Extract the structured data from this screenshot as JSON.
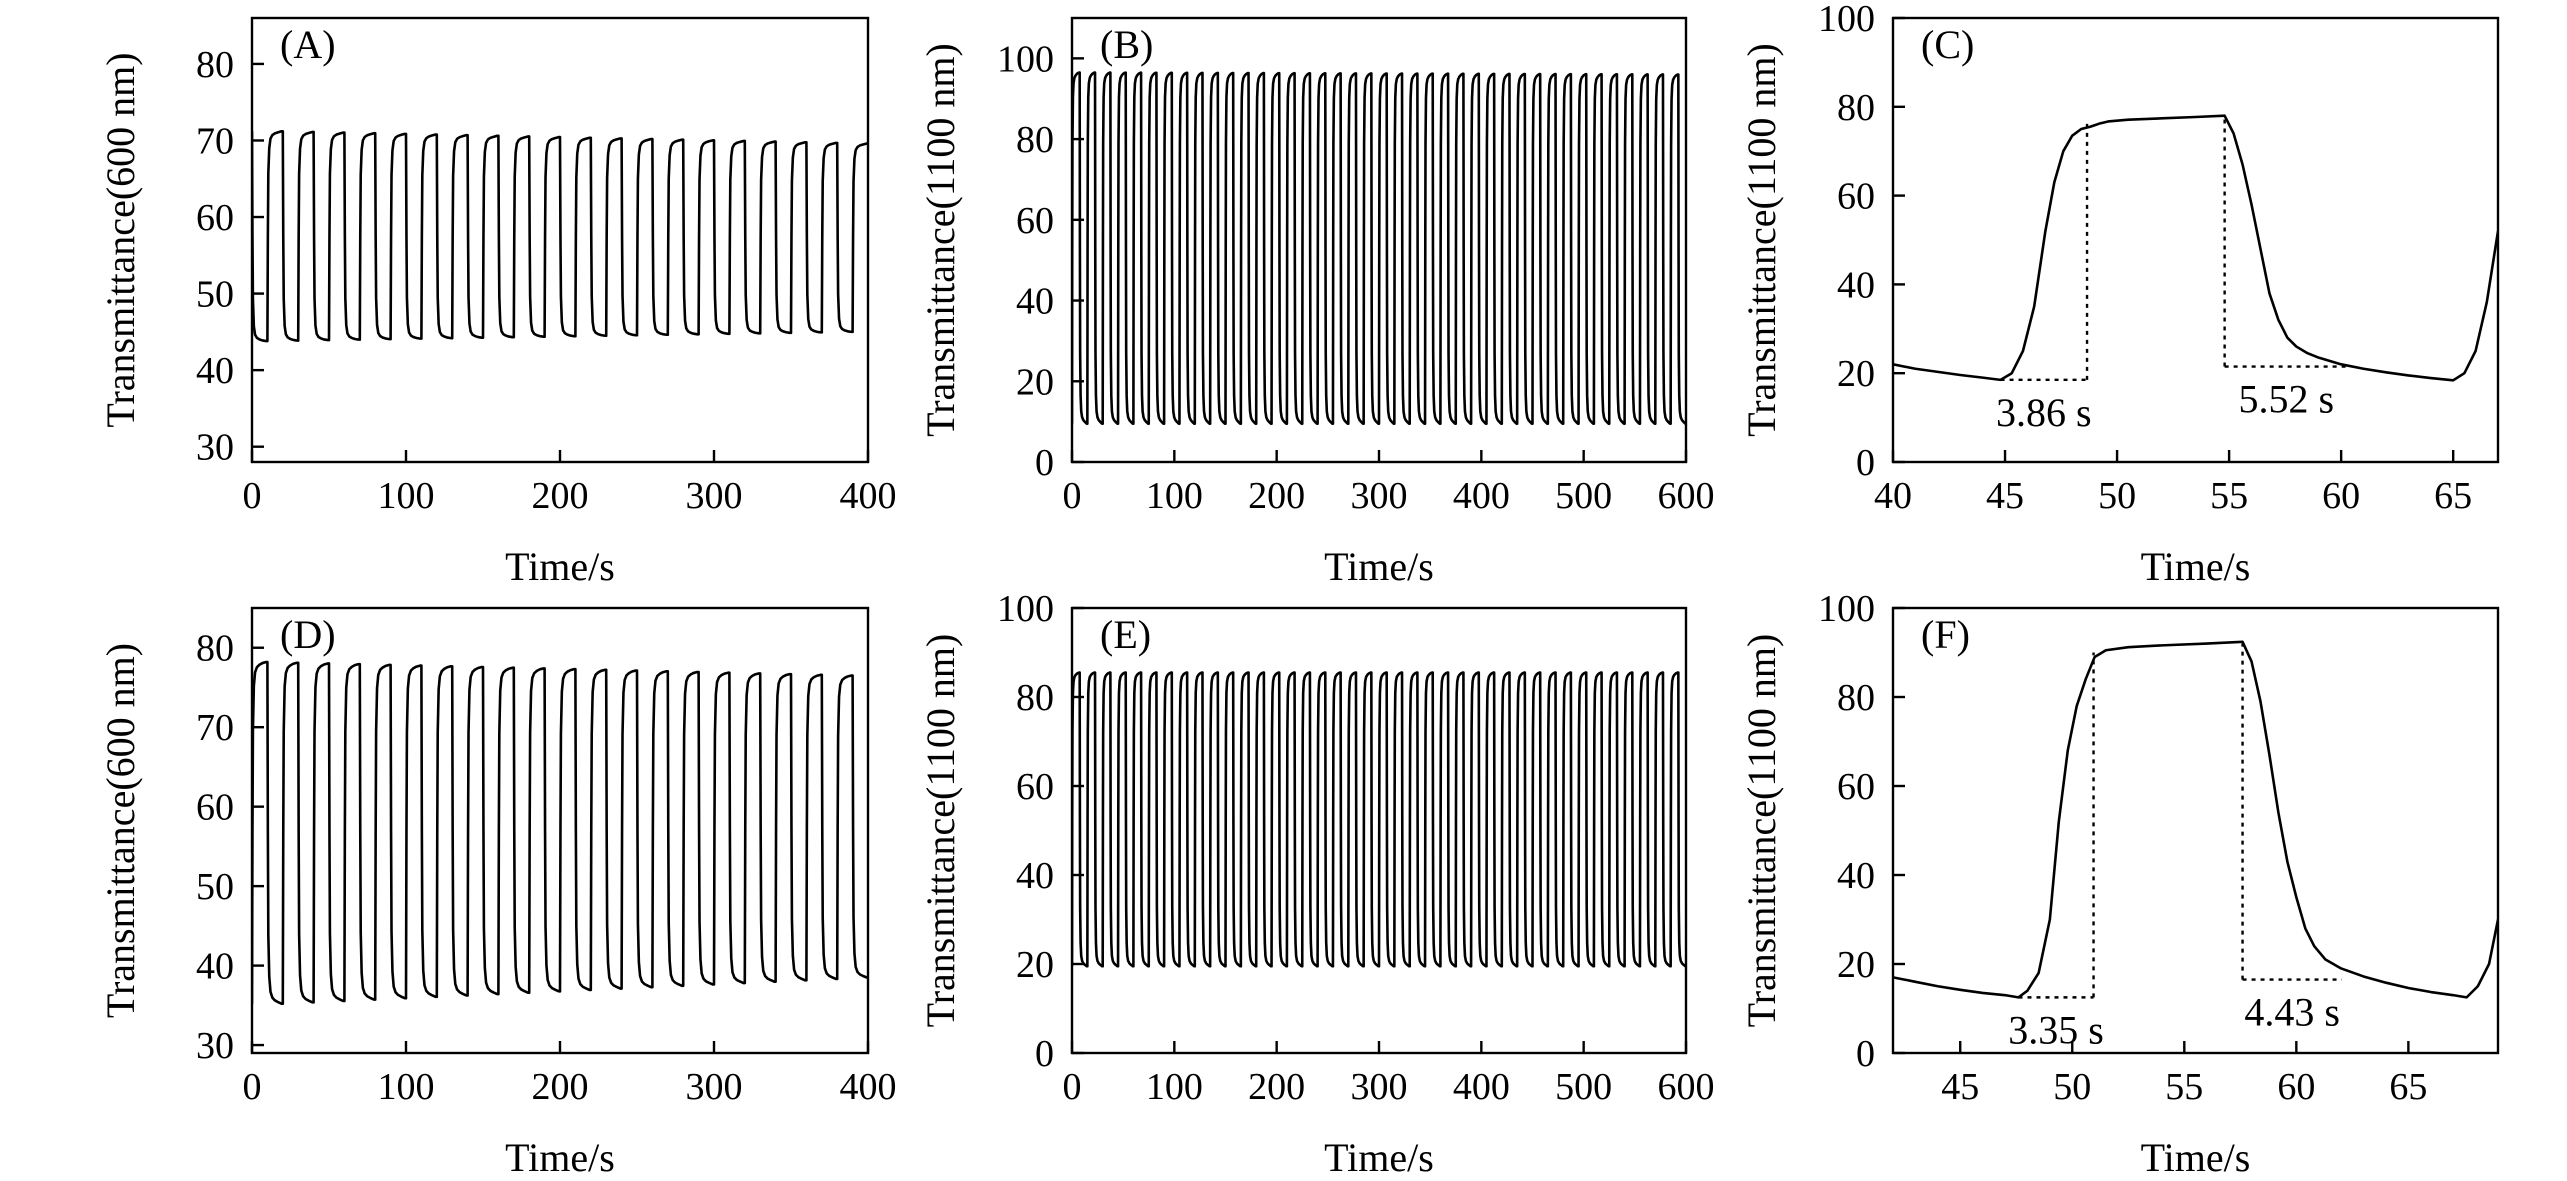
{
  "figure": {
    "background": "#ffffff",
    "line_color": "#000000"
  },
  "chart_data": [
    {
      "panel": "(A)",
      "type": "line",
      "xlabel": "Time/s",
      "ylabel": "Transmittance(600 nm)",
      "xlim": [
        0,
        400
      ],
      "ylim": [
        28,
        86
      ],
      "xticks": [
        0,
        100,
        200,
        300,
        400
      ],
      "yticks": [
        30,
        40,
        50,
        60,
        70,
        80
      ],
      "grid": false,
      "legend": "none",
      "cycling": {
        "period_s": 20,
        "cycles": 20,
        "high_start": 71.2,
        "high_end": 69.6,
        "low_start": 43.8,
        "low_end": 45.0,
        "t_start": 0,
        "t_end": 400,
        "start_at": "high"
      },
      "annotations": []
    },
    {
      "panel": "(B)",
      "type": "line",
      "xlabel": "Time/s",
      "ylabel": "Transmittance(1100 nm)",
      "xlim": [
        0,
        600
      ],
      "ylim": [
        0,
        110
      ],
      "xticks": [
        0,
        100,
        200,
        300,
        400,
        500,
        600
      ],
      "yticks": [
        0,
        20,
        40,
        60,
        80,
        100
      ],
      "grid": false,
      "legend": "none",
      "cycling": {
        "period_s": 15,
        "cycles": 40,
        "high_start": 96.5,
        "high_end": 96.0,
        "low_start": 9.5,
        "low_end": 9.5,
        "t_start": 0,
        "t_end": 600,
        "start_at": "low"
      },
      "annotations": []
    },
    {
      "panel": "(C)",
      "type": "line",
      "xlabel": "Time/s",
      "ylabel": "Transmittance(1100 nm)",
      "xlim": [
        40,
        67
      ],
      "ylim": [
        0,
        100
      ],
      "xticks": [
        40,
        45,
        50,
        55,
        60,
        65
      ],
      "yticks": [
        0,
        20,
        40,
        60,
        80,
        100
      ],
      "grid": false,
      "legend": "none",
      "x": [
        40,
        41,
        42,
        43,
        44,
        44.8,
        45.3,
        45.8,
        46.3,
        46.8,
        47.2,
        47.6,
        48.0,
        48.4,
        48.8,
        49.2,
        49.6,
        50.5,
        52,
        53.5,
        54.8,
        55.2,
        55.6,
        56.0,
        56.4,
        56.8,
        57.2,
        57.6,
        58.0,
        58.5,
        59,
        60,
        61,
        62,
        63,
        64,
        65,
        65.5,
        66,
        66.5,
        67
      ],
      "y": [
        22,
        21,
        20.3,
        19.6,
        19,
        18.5,
        20,
        25,
        35,
        52,
        63,
        70,
        73.5,
        75,
        75.5,
        76.2,
        76.7,
        77.1,
        77.4,
        77.7,
        78,
        74,
        67,
        58,
        48,
        38,
        32,
        28,
        26,
        24.5,
        23.5,
        22,
        21,
        20.2,
        19.5,
        18.9,
        18.4,
        20,
        25,
        36,
        52
      ],
      "annotations": [
        {
          "text": "3.86 s",
          "x_from": 44.8,
          "x_to": 48.66,
          "level_y": 18.5,
          "top_y": 77
        },
        {
          "text": "5.52 s",
          "x_from": 54.8,
          "x_to": 60.3,
          "level_y": 21.5,
          "top_y": 78
        }
      ]
    },
    {
      "panel": "(D)",
      "type": "line",
      "xlabel": "Time/s",
      "ylabel": "Transmittance(600 nm)",
      "xlim": [
        0,
        400
      ],
      "ylim": [
        29,
        85
      ],
      "xticks": [
        0,
        100,
        200,
        300,
        400
      ],
      "yticks": [
        30,
        40,
        50,
        60,
        70,
        80
      ],
      "grid": false,
      "legend": "none",
      "cycling": {
        "period_s": 20,
        "cycles": 20,
        "high_start": 78.2,
        "high_end": 76.5,
        "low_start": 35.2,
        "low_end": 38.5,
        "t_start": 0,
        "t_end": 400,
        "start_at": "low"
      },
      "annotations": []
    },
    {
      "panel": "(E)",
      "type": "line",
      "xlabel": "Time/s",
      "ylabel": "Transmittance(1100 nm)",
      "xlim": [
        0,
        600
      ],
      "ylim": [
        0,
        100
      ],
      "xticks": [
        0,
        100,
        200,
        300,
        400,
        500,
        600
      ],
      "yticks": [
        0,
        20,
        40,
        60,
        80,
        100
      ],
      "grid": false,
      "legend": "none",
      "cycling": {
        "period_s": 15,
        "cycles": 40,
        "high_start": 85.5,
        "high_end": 85.5,
        "low_start": 19.5,
        "low_end": 19.5,
        "t_start": 0,
        "t_end": 600,
        "start_at": "low"
      },
      "annotations": []
    },
    {
      "panel": "(F)",
      "type": "line",
      "xlabel": "Time/s",
      "ylabel": "Transmittance(1100 nm)",
      "xlim": [
        42,
        69
      ],
      "ylim": [
        0,
        100
      ],
      "xticks": [
        45,
        50,
        55,
        60,
        65
      ],
      "yticks": [
        0,
        20,
        40,
        60,
        80,
        100
      ],
      "grid": false,
      "legend": "none",
      "x": [
        42,
        43,
        44,
        45,
        46,
        47,
        47.6,
        48.0,
        48.5,
        49.0,
        49.4,
        49.8,
        50.2,
        50.6,
        51.0,
        51.5,
        52.5,
        54,
        56,
        57.6,
        58.0,
        58.4,
        58.8,
        59.2,
        59.6,
        60.0,
        60.4,
        60.8,
        61.3,
        62,
        63,
        64,
        65,
        66,
        67,
        67.6,
        68.1,
        68.6,
        69
      ],
      "y": [
        17,
        16,
        15,
        14.2,
        13.5,
        13,
        12.5,
        14,
        18,
        30,
        52,
        68,
        78,
        84,
        89,
        90.5,
        91.2,
        91.6,
        92,
        92.4,
        88,
        79,
        67,
        54,
        43,
        35,
        28,
        24,
        21,
        19,
        17.2,
        15.8,
        14.6,
        13.7,
        13,
        12.5,
        15,
        20,
        30
      ],
      "annotations": [
        {
          "text": "3.35 s",
          "x_from": 47.6,
          "x_to": 50.95,
          "level_y": 12.5,
          "top_y": 90
        },
        {
          "text": "4.43 s",
          "x_from": 57.6,
          "x_to": 62.03,
          "level_y": 16.5,
          "top_y": 92
        }
      ]
    }
  ]
}
